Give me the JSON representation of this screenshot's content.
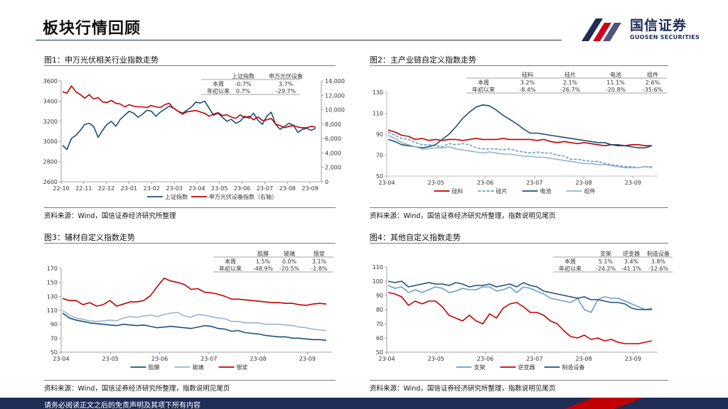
{
  "header": {
    "title": "板块行情回顾",
    "logo_cn": "国信证券",
    "logo_en": "GUOSEN SECURITIES"
  },
  "footer": {
    "text": "请务必阅读正文之后的免责声明及其项下所有内容"
  },
  "colors": {
    "navy": "#1f2d57",
    "red": "#c00000",
    "blue": "#1f4e79",
    "light_blue": "#8db4e2",
    "mid_blue": "#6a9bd1"
  },
  "panels": [
    {
      "title": "图1：申万光伏相关行业指数走势",
      "source": "资料来源：Wind，国信证券经济研究所整理"
    },
    {
      "title": "图2：主产业链自定义指数走势",
      "source": "资料来源：Wind，国信证券经济研究所整理，指数说明见尾页"
    },
    {
      "title": "图3：辅材自定义指数走势",
      "source": "资料来源：Wind，国信证券经济研究所整理，指数说明见尾页"
    },
    {
      "title": "图4：其他自定义指数走势",
      "source": "资料来源：Wind，国信证券经济研究所整理，指数说明见尾页"
    }
  ],
  "chart_data": [
    {
      "type": "line",
      "x_ticks": [
        "22-10",
        "22-11",
        "22-12",
        "23-01",
        "23-02",
        "23-03",
        "23-04",
        "23-05",
        "23-06",
        "23-07",
        "23-08",
        "23-09"
      ],
      "y_ticks": [
        2600,
        2800,
        3000,
        3200,
        3400,
        3600
      ],
      "y2_ticks": [
        0,
        2000,
        4000,
        6000,
        8000,
        10000,
        12000,
        14000
      ],
      "ylim": [
        2600,
        3600
      ],
      "y2lim": [
        0,
        14000
      ],
      "grid": false,
      "legend_position": "bottom",
      "series": [
        {
          "name": "上证指数",
          "axis": "left",
          "color": "#1f4e79",
          "dash": false,
          "values": [
            2960,
            2920,
            3030,
            3060,
            3110,
            3170,
            3180,
            3150,
            3040,
            3110,
            3170,
            3200,
            3150,
            3220,
            3260,
            3300,
            3280,
            3240,
            3270,
            3310,
            3300,
            3250,
            3290,
            3320,
            3350,
            3330,
            3300,
            3280,
            3310,
            3340,
            3390,
            3380,
            3400,
            3330,
            3260,
            3280,
            3240,
            3200,
            3220,
            3180,
            3200,
            3250,
            3230,
            3280,
            3210,
            3170,
            3250,
            3290,
            3170,
            3120,
            3150,
            3180,
            3160,
            3090,
            3120,
            3130,
            3110,
            3130
          ]
        },
        {
          "name": "申万光伏设备指数（右轴）",
          "axis": "right",
          "color": "#c00000",
          "dash": false,
          "values": [
            12500,
            12300,
            13300,
            12500,
            12100,
            11600,
            12100,
            11500,
            11700,
            11100,
            11000,
            11300,
            10900,
            10800,
            10400,
            10700,
            10500,
            10400,
            10400,
            10300,
            10600,
            10400,
            10300,
            10700,
            10900,
            10200,
            9800,
            9400,
            9700,
            9800,
            9900,
            9700,
            9500,
            9100,
            9400,
            9600,
            9200,
            9300,
            9000,
            8800,
            9300,
            8900,
            9100,
            8600,
            9000,
            8500,
            8600,
            8800,
            8000,
            7800,
            7500,
            7700,
            7800,
            7600,
            7500,
            7500,
            7700,
            7600
          ]
        }
      ],
      "stats_table": {
        "columns": [
          "上证指数",
          "申万光伏设备"
        ],
        "rows": [
          {
            "label": "本周",
            "values": [
              "-0.7%",
              "3.7%"
            ]
          },
          {
            "label": "年初以来",
            "values": [
              "0.7%",
              "-29.7%"
            ]
          }
        ]
      }
    },
    {
      "type": "line",
      "x_ticks": [
        "23-04",
        "23-05",
        "23-06",
        "23-07",
        "23-08",
        "23-09"
      ],
      "y_ticks": [
        50,
        70,
        90,
        110,
        130
      ],
      "ylim": [
        50,
        130
      ],
      "grid": false,
      "legend_position": "bottom",
      "series": [
        {
          "name": "硅料",
          "color": "#c00000",
          "dash": false,
          "values": [
            94,
            92,
            89,
            88,
            85,
            86,
            84,
            85,
            84,
            85,
            85,
            84,
            85,
            86,
            85,
            85,
            85,
            86,
            85,
            85,
            85,
            85,
            84,
            85,
            83,
            82,
            83,
            82,
            81,
            82,
            81,
            80,
            79,
            80,
            79,
            79,
            80,
            80,
            79,
            79
          ]
        },
        {
          "name": "硅片",
          "color": "#6a9bd1",
          "dash": true,
          "values": [
            92,
            89,
            86,
            85,
            82,
            80,
            80,
            79,
            78,
            81,
            80,
            81,
            80,
            77,
            76,
            76,
            76,
            75,
            76,
            74,
            73,
            72,
            73,
            72,
            72,
            70,
            69,
            66,
            66,
            65,
            64,
            64,
            62,
            61,
            60,
            59,
            59,
            58,
            59,
            58
          ]
        },
        {
          "name": "电池",
          "color": "#1f4e79",
          "dash": false,
          "values": [
            85,
            83,
            80,
            79,
            78,
            77,
            78,
            80,
            85,
            90,
            97,
            105,
            111,
            116,
            118,
            117,
            113,
            108,
            104,
            100,
            95,
            91,
            91,
            90,
            89,
            88,
            87,
            86,
            85,
            84,
            83,
            82,
            82,
            80,
            80,
            79,
            78,
            77,
            77,
            79
          ]
        },
        {
          "name": "组件",
          "color": "#9ab3cc",
          "dash": false,
          "values": [
            89,
            86,
            82,
            80,
            78,
            76,
            76,
            77,
            77,
            78,
            76,
            75,
            74,
            73,
            72,
            73,
            72,
            71,
            71,
            70,
            69,
            69,
            68,
            68,
            67,
            66,
            65,
            64,
            63,
            62,
            62,
            61,
            61,
            60,
            59,
            58,
            58,
            58,
            59,
            59
          ]
        }
      ],
      "stats_table": {
        "columns": [
          "硅料",
          "硅片",
          "电池",
          "组件"
        ],
        "rows": [
          {
            "label": "本周",
            "values": [
              "3.2%",
              "2.1%",
              "11.1%",
              "2.6%"
            ]
          },
          {
            "label": "年初以来",
            "values": [
              "-8.4%",
              "-26.7%",
              "-20.8%",
              "-35.6%"
            ]
          }
        ]
      }
    },
    {
      "type": "line",
      "x_ticks": [
        "23-04",
        "23-05",
        "23-06",
        "23-07",
        "23-08",
        "23-09"
      ],
      "y_ticks": [
        50,
        70,
        90,
        110,
        130,
        150,
        170
      ],
      "ylim": [
        50,
        170
      ],
      "grid": false,
      "legend_position": "bottom",
      "series": [
        {
          "name": "胶膜",
          "color": "#1f4e79",
          "dash": false,
          "values": [
            106,
            99,
            96,
            94,
            92,
            91,
            90,
            89,
            88,
            90,
            89,
            88,
            89,
            87,
            85,
            86,
            87,
            86,
            85,
            84,
            86,
            88,
            87,
            84,
            83,
            80,
            81,
            78,
            77,
            76,
            74,
            73,
            72,
            72,
            70,
            70,
            69,
            68,
            68,
            67
          ]
        },
        {
          "name": "玻璃",
          "color": "#9ab3cc",
          "dash": false,
          "values": [
            110,
            103,
            99,
            97,
            95,
            94,
            95,
            96,
            95,
            99,
            101,
            100,
            102,
            103,
            101,
            104,
            106,
            107,
            102,
            100,
            104,
            103,
            101,
            99,
            98,
            94,
            94,
            92,
            92,
            92,
            90,
            90,
            90,
            89,
            88,
            86,
            85,
            83,
            82,
            81
          ]
        },
        {
          "name": "银浆",
          "color": "#c00000",
          "dash": false,
          "values": [
            127,
            124,
            124,
            118,
            121,
            116,
            118,
            124,
            116,
            119,
            122,
            122,
            124,
            131,
            144,
            156,
            152,
            150,
            147,
            140,
            141,
            136,
            135,
            133,
            130,
            126,
            126,
            125,
            124,
            123,
            122,
            121,
            121,
            120,
            120,
            118,
            117,
            119,
            120,
            119
          ]
        }
      ],
      "stats_table": {
        "columns": [
          "胶膜",
          "玻璃",
          "银浆"
        ],
        "rows": [
          {
            "label": "本周",
            "values": [
              "1.5%",
              "0.0%",
              "3.1%"
            ]
          },
          {
            "label": "年初以来",
            "values": [
              "-48.9%",
              "-20.5%",
              "-1.8%"
            ]
          }
        ]
      }
    },
    {
      "type": "line",
      "x_ticks": [
        "23-04",
        "23-05",
        "23-06",
        "23-07",
        "23-08",
        "23-09"
      ],
      "y_ticks": [
        50,
        60,
        70,
        80,
        90,
        100,
        110
      ],
      "ylim": [
        50,
        110
      ],
      "grid": false,
      "legend_position": "bottom",
      "series": [
        {
          "name": "支架",
          "color": "#6a9bd1",
          "dash": false,
          "values": [
            97,
            95,
            96,
            92,
            94,
            92,
            94,
            96,
            95,
            92,
            93,
            95,
            94,
            94,
            96,
            96,
            93,
            94,
            96,
            92,
            96,
            95,
            93,
            91,
            88,
            87,
            86,
            85,
            88,
            80,
            78,
            87,
            89,
            88,
            88,
            86,
            84,
            82,
            80,
            81
          ]
        },
        {
          "name": "逆变器",
          "color": "#c00000",
          "dash": false,
          "values": [
            92,
            91,
            89,
            83,
            86,
            84,
            86,
            86,
            82,
            76,
            74,
            72,
            76,
            72,
            70,
            77,
            74,
            81,
            84,
            85,
            82,
            78,
            78,
            76,
            72,
            70,
            65,
            61,
            60,
            62,
            59,
            60,
            58,
            59,
            57,
            56,
            56,
            56,
            57,
            58
          ]
        },
        {
          "name": "制造设备",
          "color": "#1f4e79",
          "dash": false,
          "values": [
            100,
            99,
            100,
            96,
            97,
            98,
            99,
            98,
            98,
            97,
            99,
            98,
            96,
            97,
            97,
            98,
            96,
            97,
            98,
            96,
            99,
            97,
            96,
            93,
            92,
            91,
            90,
            89,
            88,
            89,
            87,
            87,
            86,
            85,
            85,
            84,
            81,
            80,
            80,
            80
          ]
        }
      ],
      "stats_table": {
        "columns": [
          "支架",
          "逆变器",
          "制造设备"
        ],
        "rows": [
          {
            "label": "本周",
            "values": [
              "5.1%",
              "3.4%",
              "3.8%"
            ]
          },
          {
            "label": "年初以来",
            "values": [
              "-24.2%",
              "-41.1%",
              "-12.6%"
            ]
          }
        ]
      }
    }
  ]
}
